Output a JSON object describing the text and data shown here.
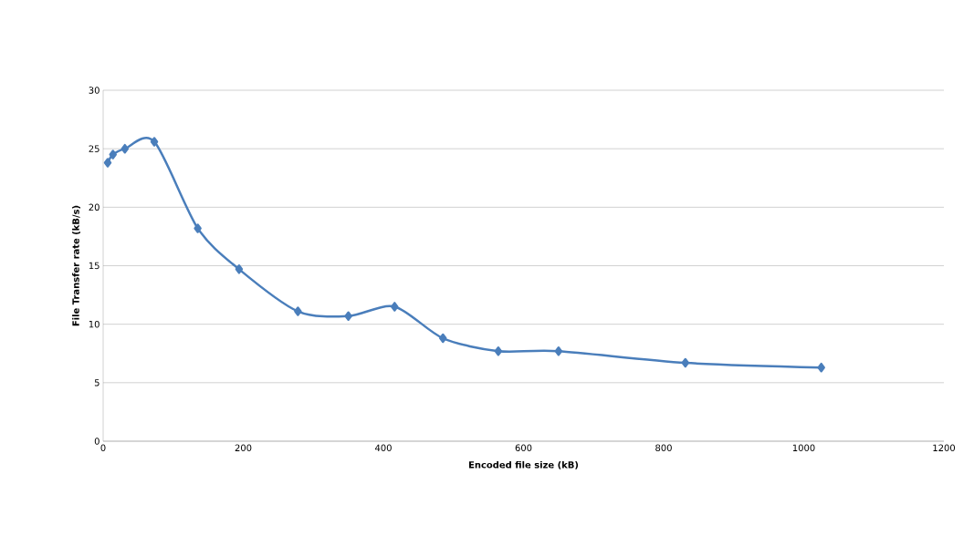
{
  "chart_data": {
    "type": "line",
    "xlabel": "Encoded file size (kB)",
    "ylabel": "File Transfer rate (kB/s)",
    "x": [
      6.5,
      14,
      31,
      73,
      135,
      194,
      278,
      350,
      416,
      485,
      564,
      650,
      831,
      1025
    ],
    "series": [
      {
        "color": "#4a7ebb",
        "values": [
          23.8,
          24.5,
          25.0,
          25.6,
          18.2,
          14.7,
          11.1,
          10.7,
          11.5,
          8.8,
          7.7,
          7.7,
          6.7,
          6.3
        ]
      }
    ],
    "xlim": [
      0,
      1200
    ],
    "xticks": [
      0,
      200,
      400,
      600,
      800,
      1000,
      1200
    ],
    "ylim": [
      0,
      30
    ],
    "yticks": [
      0,
      5,
      10,
      15,
      20,
      25,
      30
    ],
    "grid": "y",
    "marker": "diamond",
    "line_style": "solid"
  }
}
